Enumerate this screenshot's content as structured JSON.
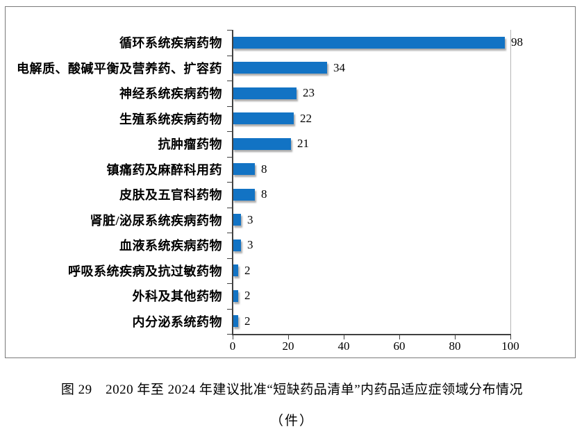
{
  "chart_data": {
    "type": "bar",
    "orientation": "horizontal",
    "title": "",
    "xlabel": "",
    "ylabel": "",
    "categories": [
      "循环系统疾病药物",
      "电解质、酸碱平衡及营养药、扩容药",
      "神经系统疾病药物",
      "生殖系统疾病药物",
      "抗肿瘤药物",
      "镇痛药及麻醉科用药",
      "皮肤及五官科药物",
      "肾脏/泌尿系统疾病药物",
      "血液系统疾病药物",
      "呼吸系统疾病及抗过敏药物",
      "外科及其他药物",
      "内分泌系统药物"
    ],
    "values": [
      98,
      34,
      23,
      22,
      21,
      8,
      8,
      3,
      3,
      2,
      2,
      2
    ],
    "value_labels": [
      "98",
      "34",
      "23",
      "22",
      "21",
      "8",
      "8",
      "3",
      "3",
      "2",
      "2",
      "2"
    ],
    "xlim": [
      0,
      100
    ],
    "x_ticks": [
      0,
      20,
      40,
      60,
      80,
      100
    ],
    "grid": false,
    "legend": "none",
    "bar_color": "#1273c4",
    "axis_color": "#404040",
    "frame_color": "#7a7a7a"
  },
  "caption": {
    "line1": "图 29　2020 年至 2024 年建议批准“短缺药品清单”内药品适应症领域分布情况",
    "line2": "（件）"
  }
}
